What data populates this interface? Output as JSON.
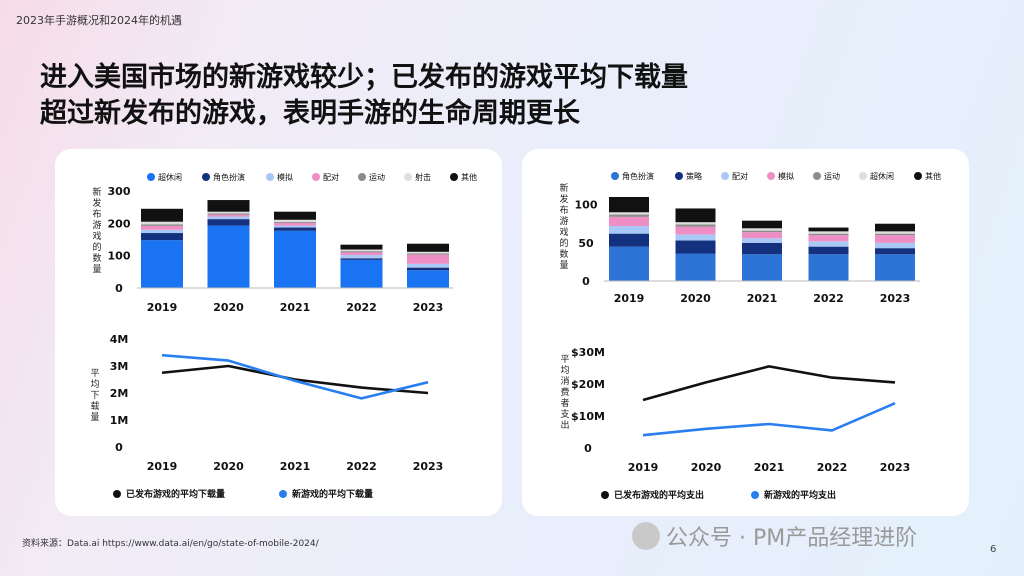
{
  "header": {
    "topline": "2023年手游概况和2024年的机遇"
  },
  "headline": {
    "line1": "进入美国市场的新游戏较少；已发布的游戏平均下载量",
    "line2": "超过新发布的游戏，表明手游的生命周期更长"
  },
  "footer": {
    "source": "资料来源：Data.ai  https://www.data.ai/en/go/state-of-mobile-2024/",
    "watermark": "公众号 · PM产品经理进阶",
    "page": "6"
  },
  "chart_data": [
    {
      "type": "bar",
      "stacked": true,
      "ylabel": "新发布游戏的数量",
      "categories": [
        "2019",
        "2020",
        "2021",
        "2022",
        "2023"
      ],
      "yticks": [
        0,
        100,
        200,
        300
      ],
      "ytick_labels": [
        "0",
        "100",
        "200",
        "300"
      ],
      "ylim": [
        0,
        300
      ],
      "legend_position": "top",
      "series": [
        {
          "name": "超休闲",
          "color": "#1a73f2",
          "values": [
            148,
            193,
            177,
            87,
            55
          ]
        },
        {
          "name": "角色扮演",
          "color": "#13317e",
          "values": [
            22,
            20,
            10,
            5,
            8
          ]
        },
        {
          "name": "模拟",
          "color": "#a9c8f5",
          "values": [
            10,
            8,
            6,
            10,
            12
          ]
        },
        {
          "name": "配对",
          "color": "#ee8ec4",
          "values": [
            12,
            6,
            8,
            8,
            28
          ]
        },
        {
          "name": "运动",
          "color": "#8c8c8c",
          "values": [
            5,
            4,
            3,
            4,
            4
          ]
        },
        {
          "name": "射击",
          "color": "#dedede",
          "values": [
            8,
            5,
            7,
            5,
            5
          ]
        },
        {
          "name": "其他",
          "color": "#111111",
          "values": [
            40,
            36,
            25,
            15,
            25
          ]
        }
      ]
    },
    {
      "type": "line",
      "ylabel": "平均下载量",
      "categories": [
        "2019",
        "2020",
        "2021",
        "2022",
        "2023"
      ],
      "yticks": [
        0,
        1,
        2,
        3,
        4
      ],
      "ytick_labels": [
        "0",
        "1M",
        "2M",
        "3M",
        "4M"
      ],
      "ylim": [
        0,
        4
      ],
      "legend_position": "bottom",
      "series": [
        {
          "name": "已发布游戏的平均下载量",
          "color": "#111111",
          "values": [
            2.75,
            3.0,
            2.5,
            2.2,
            2.0
          ]
        },
        {
          "name": "新游戏的平均下载量",
          "color": "#2a7ff0",
          "values": [
            3.4,
            3.2,
            2.45,
            1.8,
            2.4
          ]
        }
      ]
    },
    {
      "type": "bar",
      "stacked": true,
      "ylabel": "新发布游戏的数量",
      "categories": [
        "2019",
        "2020",
        "2021",
        "2022",
        "2023"
      ],
      "yticks": [
        0,
        50,
        100
      ],
      "ytick_labels": [
        "0",
        "50",
        "100"
      ],
      "ylim": [
        0,
        110
      ],
      "legend_position": "top",
      "series": [
        {
          "name": "角色扮演",
          "color": "#2e74d6",
          "values": [
            45,
            36,
            35,
            35,
            35
          ]
        },
        {
          "name": "策略",
          "color": "#13317e",
          "values": [
            17,
            17,
            15,
            10,
            8
          ]
        },
        {
          "name": "配对",
          "color": "#a9c8f5",
          "values": [
            10,
            8,
            6,
            7,
            7
          ]
        },
        {
          "name": "模拟",
          "color": "#ee8ec4",
          "values": [
            12,
            10,
            8,
            8,
            10
          ]
        },
        {
          "name": "运动",
          "color": "#8c8c8c",
          "values": [
            3,
            3,
            2,
            2,
            2
          ]
        },
        {
          "name": "超休闲",
          "color": "#dedede",
          "values": [
            3,
            3,
            3,
            3,
            3
          ]
        },
        {
          "name": "其他",
          "color": "#111111",
          "values": [
            20,
            18,
            10,
            5,
            10
          ]
        }
      ]
    },
    {
      "type": "line",
      "ylabel": "平均消费者支出",
      "categories": [
        "2019",
        "2020",
        "2021",
        "2022",
        "2023"
      ],
      "yticks": [
        0,
        10,
        20,
        30
      ],
      "ytick_labels": [
        "0",
        "$10M",
        "$20M",
        "$30M"
      ],
      "ylim": [
        0,
        30
      ],
      "legend_position": "bottom",
      "series": [
        {
          "name": "已发布游戏的平均支出",
          "color": "#111111",
          "values": [
            15,
            20.5,
            25.5,
            22,
            20.5
          ]
        },
        {
          "name": "新游戏的平均支出",
          "color": "#2a7ff0",
          "values": [
            4,
            6,
            7.5,
            5.5,
            14
          ]
        }
      ]
    }
  ]
}
